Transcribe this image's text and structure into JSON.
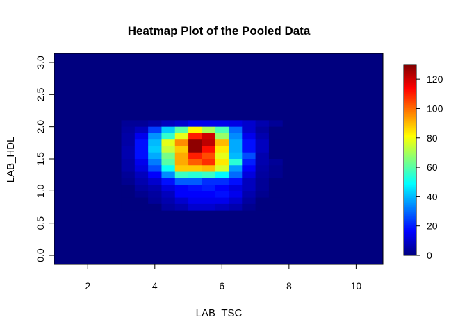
{
  "chart_data": {
    "type": "heatmap",
    "title": "Heatmap Plot of the Pooled Data",
    "xlabel": "LAB_TSC",
    "ylabel": "LAB_HDL",
    "xlim": [
      1.0,
      10.8
    ],
    "ylim": [
      -0.14,
      3.14
    ],
    "x_ticks": [
      "2",
      "4",
      "6",
      "8",
      "10"
    ],
    "y_ticks": [
      "0.0",
      "0.5",
      "1.0",
      "1.5",
      "2.0",
      "2.5",
      "3.0"
    ],
    "x_bin_start": 3.0,
    "x_bin_width": 0.4,
    "y_bin_start": 0.0,
    "y_bin_width": 0.1,
    "background_value": 0,
    "rows": [
      {
        "y": 2.0,
        "counts": [
          3,
          3,
          5,
          8,
          10,
          14,
          14,
          14,
          13,
          10,
          6,
          3
        ]
      },
      {
        "y": 1.9,
        "counts": [
          4,
          8,
          24,
          42,
          60,
          82,
          70,
          58,
          30,
          10,
          4,
          0
        ]
      },
      {
        "y": 1.8,
        "counts": [
          5,
          14,
          35,
          55,
          78,
          110,
          120,
          68,
          34,
          14,
          6,
          0
        ]
      },
      {
        "y": 1.7,
        "counts": [
          5,
          18,
          40,
          78,
          96,
          128,
          122,
          90,
          38,
          18,
          8,
          0
        ]
      },
      {
        "y": 1.6,
        "counts": [
          6,
          18,
          42,
          74,
          88,
          128,
          112,
          84,
          38,
          18,
          8,
          0
        ]
      },
      {
        "y": 1.5,
        "counts": [
          6,
          18,
          38,
          64,
          92,
          110,
          104,
          78,
          40,
          26,
          6,
          0
        ]
      },
      {
        "y": 1.4,
        "counts": [
          5,
          14,
          32,
          60,
          92,
          102,
          108,
          84,
          54,
          20,
          6,
          3
        ]
      },
      {
        "y": 1.3,
        "counts": [
          5,
          12,
          26,
          50,
          88,
          88,
          90,
          76,
          36,
          16,
          5,
          2
        ]
      },
      {
        "y": 1.2,
        "counts": [
          3,
          8,
          16,
          34,
          56,
          54,
          56,
          48,
          30,
          12,
          4,
          2
        ]
      },
      {
        "y": 1.1,
        "counts": [
          2,
          6,
          10,
          18,
          28,
          28,
          22,
          22,
          18,
          8,
          3,
          0
        ]
      },
      {
        "y": 1.0,
        "counts": [
          0,
          4,
          6,
          12,
          16,
          18,
          20,
          16,
          12,
          8,
          3,
          0
        ]
      },
      {
        "y": 0.9,
        "counts": [
          0,
          2,
          4,
          8,
          16,
          16,
          16,
          18,
          14,
          6,
          2,
          0
        ]
      },
      {
        "y": 0.8,
        "counts": [
          0,
          0,
          3,
          6,
          10,
          14,
          14,
          14,
          10,
          4,
          0,
          0
        ]
      },
      {
        "y": 0.7,
        "counts": [
          0,
          0,
          0,
          4,
          6,
          10,
          10,
          8,
          6,
          2,
          0,
          0
        ]
      }
    ],
    "colorbar": {
      "min": 0,
      "max": 130,
      "ticks": [
        0,
        20,
        40,
        60,
        80,
        100,
        120
      ],
      "palette": [
        "#00007F",
        "#0000FF",
        "#007FFF",
        "#00FFFF",
        "#7FFF7F",
        "#FFFF00",
        "#FF7F00",
        "#FF0000",
        "#7F0000"
      ]
    },
    "grid": false
  }
}
